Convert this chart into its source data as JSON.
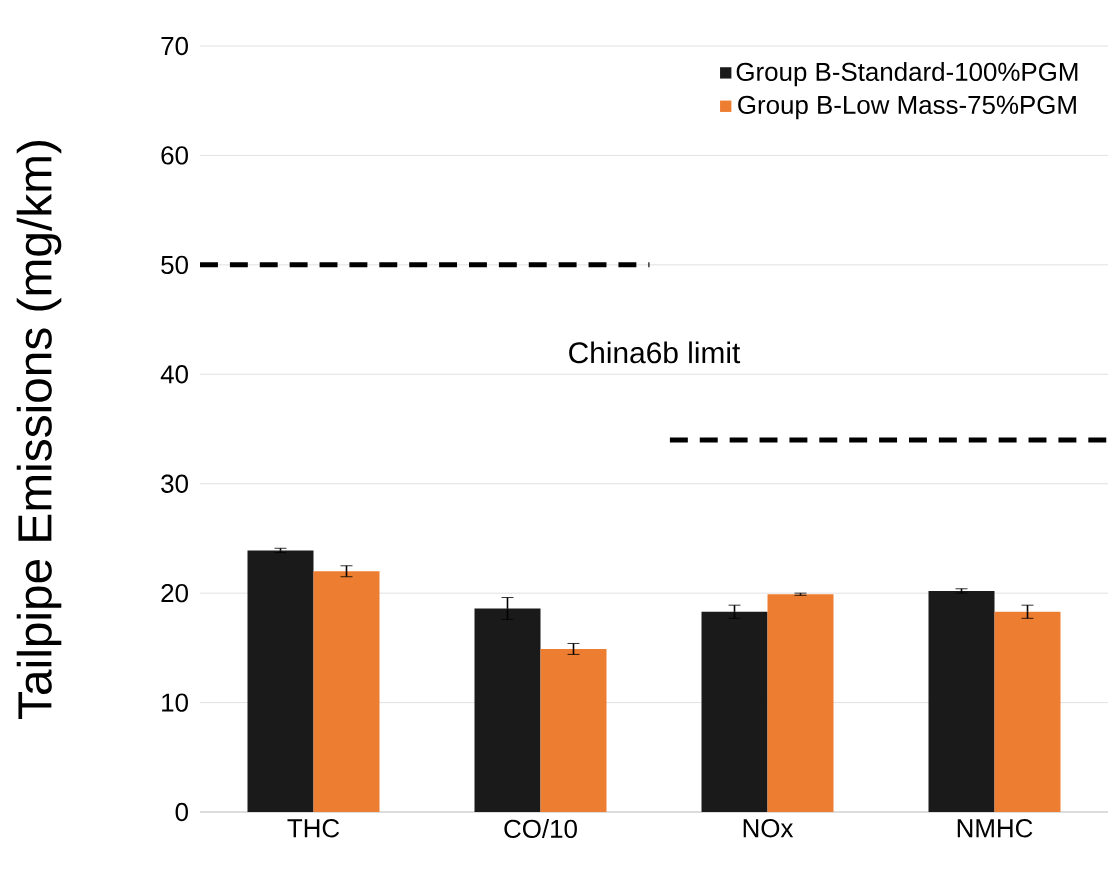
{
  "chart_data": {
    "type": "bar",
    "ylabel": "Tailpipe Emissions (mg/km)",
    "categories": [
      "THC",
      "CO/10",
      "NOx",
      "NMHC"
    ],
    "series": [
      {
        "name": "Group B-Standard-100%PGM",
        "color": "#1a1a1a",
        "values": [
          23.9,
          18.6,
          18.3,
          20.2
        ],
        "errors": [
          0.2,
          1.0,
          0.6,
          0.2
        ]
      },
      {
        "name": "Group B-Low Mass-75%PGM",
        "color": "#ed7d31",
        "values": [
          22.0,
          14.9,
          19.9,
          18.3
        ],
        "errors": [
          0.5,
          0.5,
          0.1,
          0.6
        ]
      }
    ],
    "ylim": [
      0,
      70
    ],
    "yticks": [
      0,
      10,
      20,
      30,
      40,
      50,
      60,
      70
    ],
    "grid": "y",
    "legend": "top right",
    "ref_lines": [
      {
        "axis": "y",
        "value": 50,
        "color": "#000000",
        "line_style": "dashed"
      },
      {
        "axis": "y",
        "value": 34,
        "color": "#000000",
        "line_style": "dashed"
      }
    ],
    "annotations": [
      "China6b limit"
    ]
  }
}
